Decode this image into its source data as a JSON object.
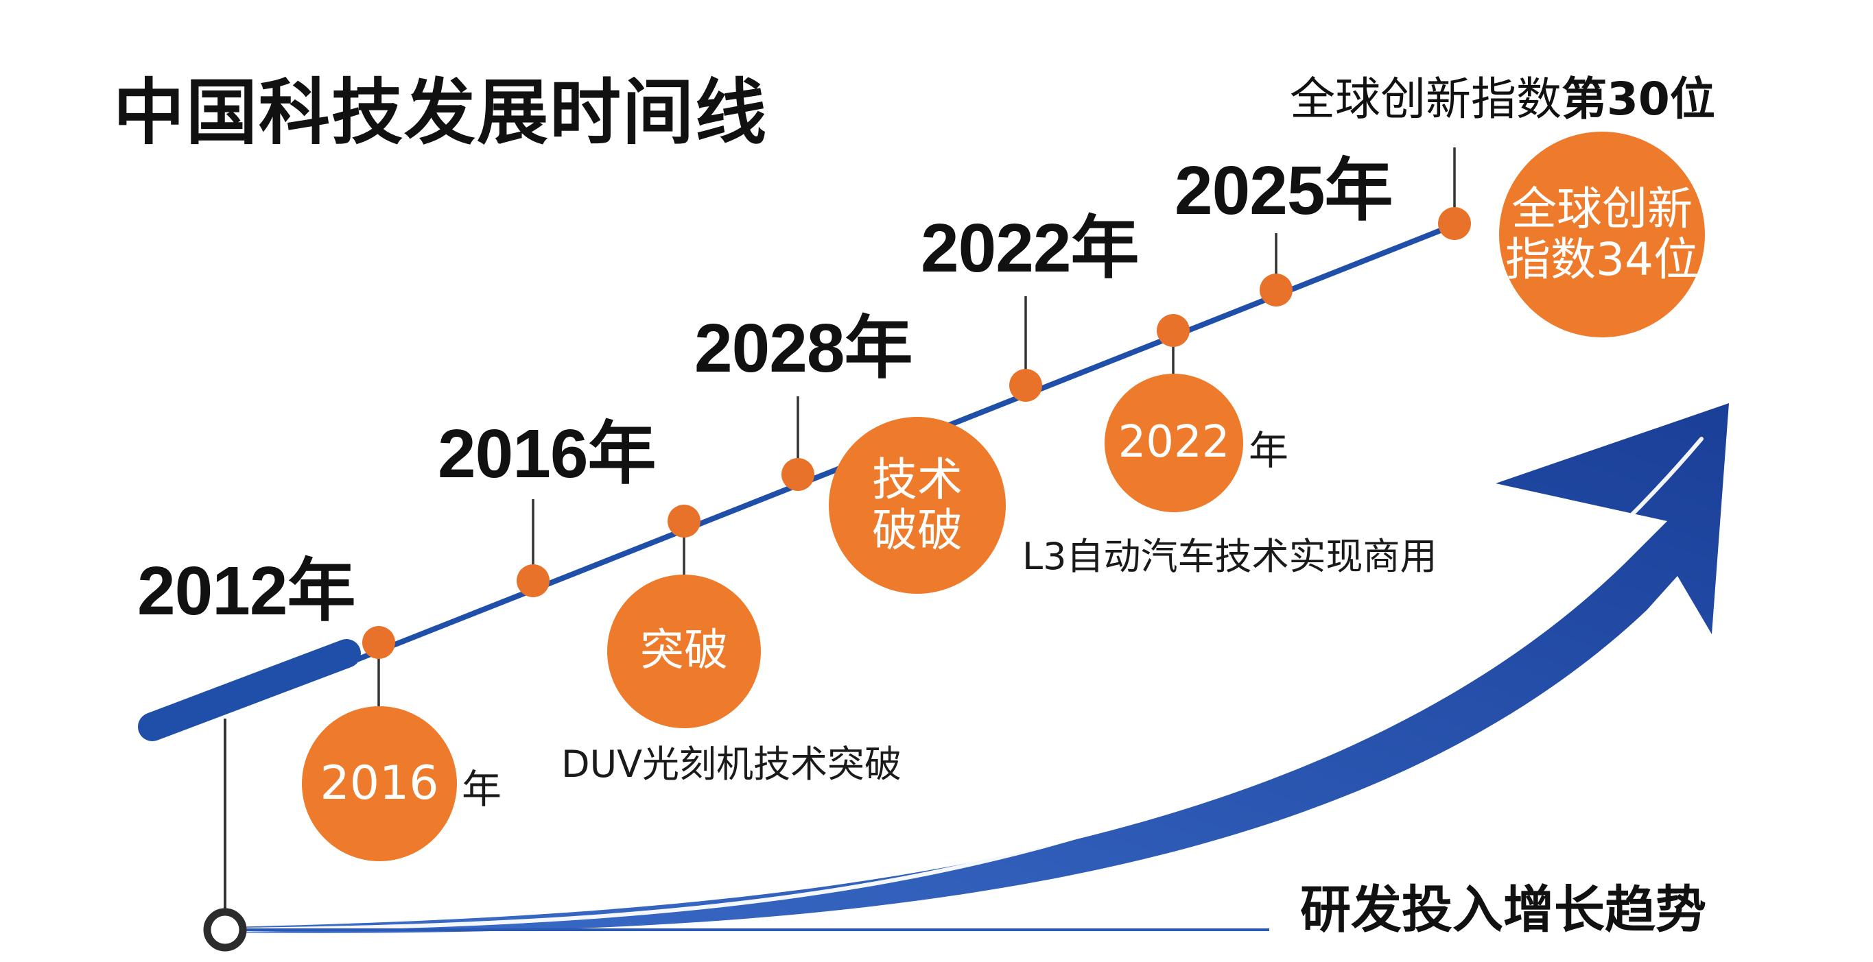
{
  "title": "中国科技发展时间线",
  "top_caption": {
    "prefix": "全球创新指数",
    "emphasis": "第30位"
  },
  "years": {
    "y2012": "2012年",
    "y2016": "2016年",
    "y2028": "2028年",
    "y2022": "2022年",
    "y2025": "2025年"
  },
  "bubbles": {
    "b2016": "2016",
    "breakthrough": "突破",
    "tech_line1": "技术",
    "tech_line2": "破破",
    "b2022": "2022",
    "global_line1": "全球创新",
    "global_line2": "指数34位"
  },
  "suffix_year": "年",
  "captions": {
    "duv": "DUV光刻机技术突破",
    "l3": "L3自动汽车技术实现商用"
  },
  "trend_label": "研发投入增长趋势",
  "colors": {
    "timeline_blue": "#1f4fa8",
    "arrow_blue": "#1d4aa6",
    "dot_orange": "#e8722a",
    "bubble_orange": "#ee7a2b",
    "text_dark": "#111111"
  }
}
